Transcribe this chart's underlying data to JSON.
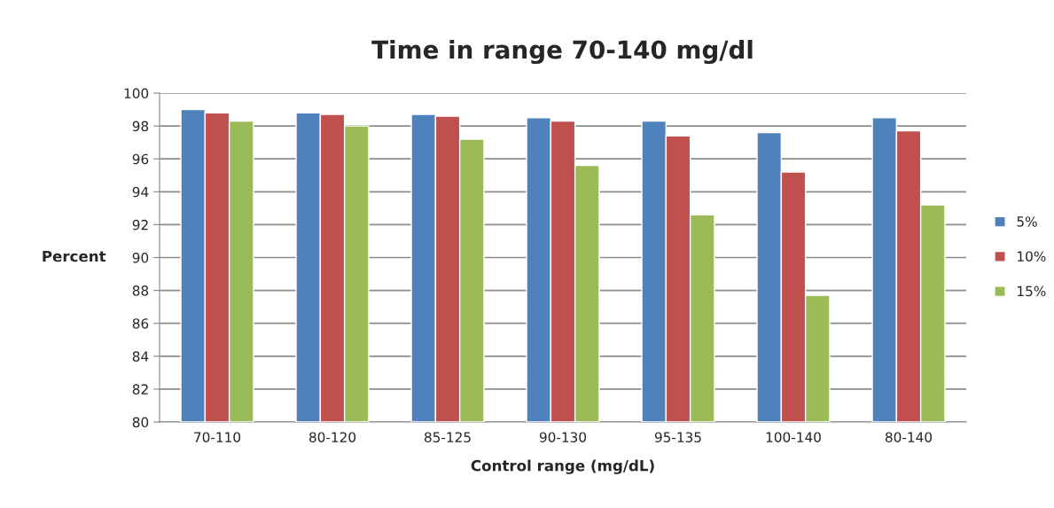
{
  "chart_data": {
    "type": "bar",
    "title": "Time in range 70-140 mg/dl",
    "xlabel": "Control range (mg/dL)",
    "ylabel": "Percent",
    "categories": [
      "70-110",
      "80-120",
      "85-125",
      "90-130",
      "95-135",
      "100-140",
      "80-140"
    ],
    "series": [
      {
        "name": "5%",
        "color": "#4f81bd",
        "values": [
          99.0,
          98.8,
          98.7,
          98.5,
          98.3,
          97.6,
          98.5
        ]
      },
      {
        "name": "10%",
        "color": "#c0504d",
        "values": [
          98.8,
          98.7,
          98.6,
          98.3,
          97.4,
          95.2,
          97.7
        ]
      },
      {
        "name": "15%",
        "color": "#9bbb59",
        "values": [
          98.3,
          98.0,
          97.2,
          95.6,
          92.6,
          87.7,
          93.2
        ]
      }
    ],
    "ylim": [
      80,
      100
    ],
    "yticks": [
      80,
      82,
      84,
      86,
      88,
      90,
      92,
      94,
      96,
      98,
      100
    ],
    "grid": "y",
    "legend": "right"
  }
}
